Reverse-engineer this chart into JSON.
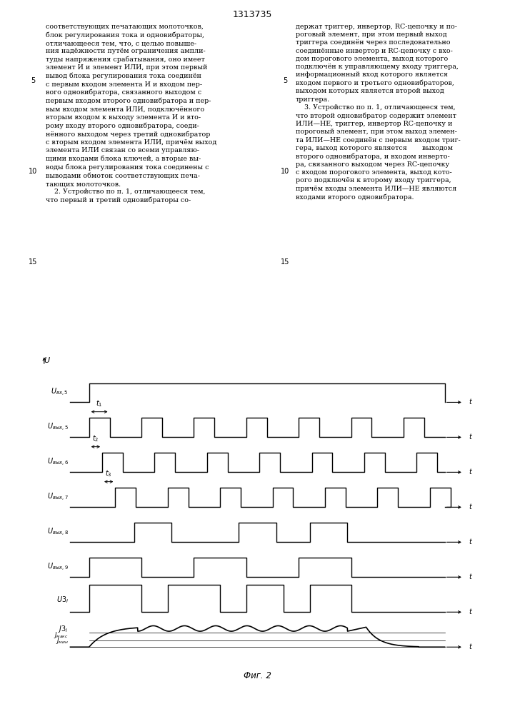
{
  "title": "Фиг. 2",
  "patent_number": "1313735",
  "background": "#ffffff",
  "line_color": "#000000",
  "col1_text": "соответствующих печатающих молоточков,\nблок регулирования тока и одновибраторы,\nотличающееся тем, что, с целью повыше-\nния надёжности путём ограничения ампли-\nтуды напряжения срабатывания, оно имеет\nэлемент И и элемент ИЛИ, при этом первый\nвывод блока регулирования тока соединён\nс первым входом элемента И и входом пер-\nвого одновибратора, связанного выходом с\nпервым входом второго одновибратора и пер-\nвым входом элемента ИЛИ, подключённого\nвторым входом к выходу элемента И и вто-\nрому входу второго одновибратора, соеди-\nнённого выходом через третий одновибратор\nс вторым входом элемента ИЛИ, причём выход\nэлемента ИЛИ связан со всеми управляю-\nщими входами блока ключей, а вторые вы-\nводы блока регулирования тока соединены с\nвыводами обмоток соответствующих печа-\nтающих молоточков.\n    2. Устройство по п. 1, отличающееся тем,\nчто первый и третий одновибраторы со-",
  "col2_text": "держат триггер, инвертор, RC-цепочку и по-\nроговый элемент, при этом первый выход\nтриггера соединён через последовательно\nсоединённые инвертор и RC-цепочку с вхо-\nдом порогового элемента, выход которого\nподключён к управляющему входу триггера,\nинформационный вход которого является\nвходом первого и третьего одновибраторов,\nвыходом которых является второй выход\nтриггера.\n    3. Устройство по п. 1, отличающееся тем,\nчто второй одновибратор содержит элемент\nИЛИ—НЕ, триггер, инвертор RC-цепочку и\nпороговый элемент, при этом выход элемен-\nта ИЛИ—НЕ соединён с первым входом триг-\nгера, выход которого является       выходом\nвторого одновибратора, и входом инверто-\nра, связанного выходом через RC-цепочку\nс входом порогового элемента, выход кото-\nрого подключён к второму входу триггера,\nпричём входы элемента ИЛИ—НЕ являются\nвходами второго одновибратора."
}
